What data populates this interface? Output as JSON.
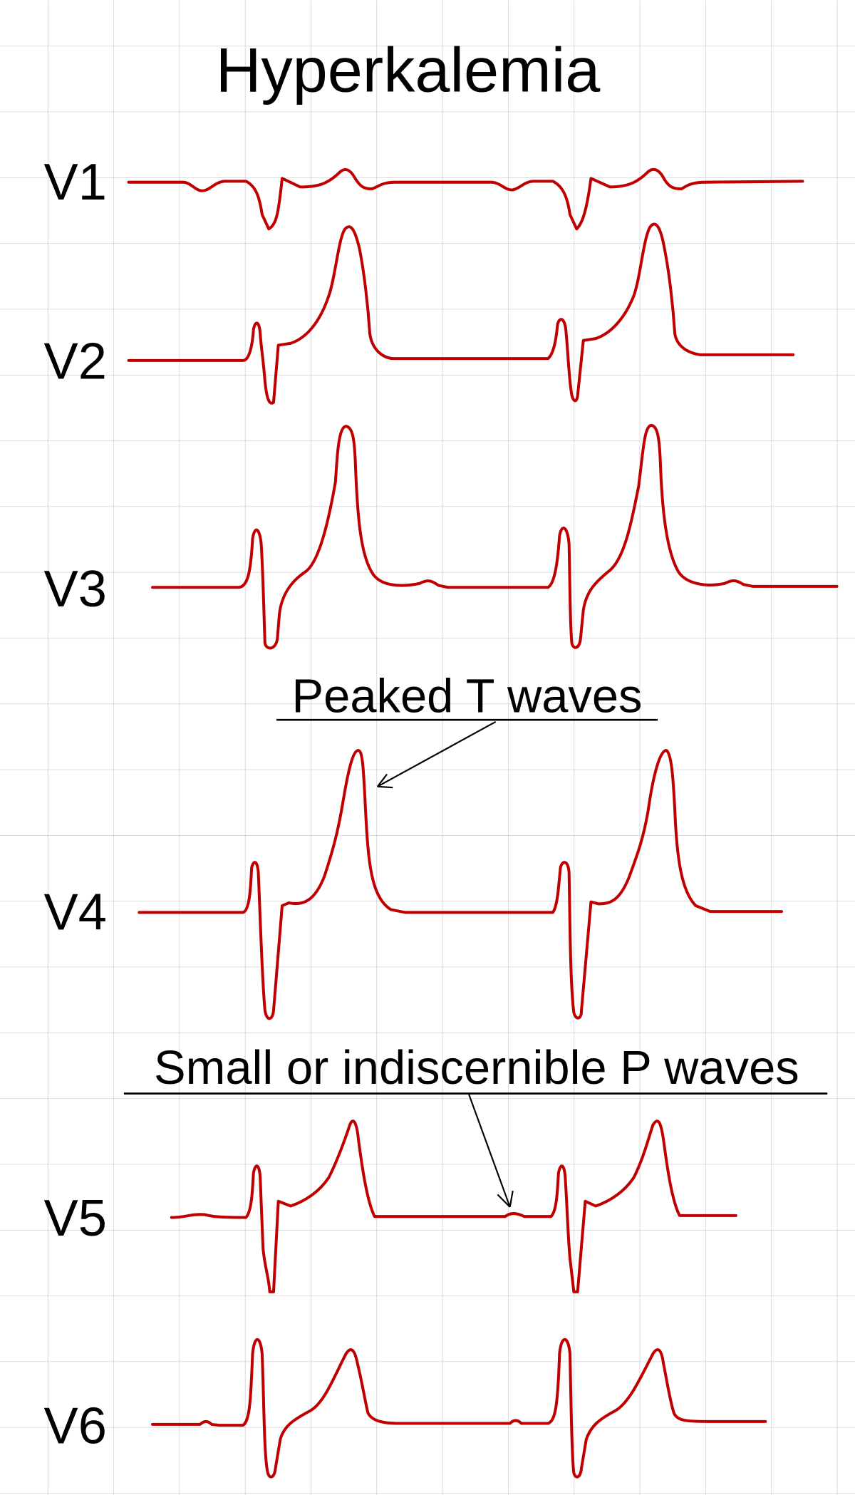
{
  "title": "Hyperkalemia",
  "leads": [
    "V1",
    "V2",
    "V3",
    "V4",
    "V5",
    "V6"
  ],
  "annotations": [
    "Peaked T waves",
    "Small or indiscernible P waves"
  ]
}
